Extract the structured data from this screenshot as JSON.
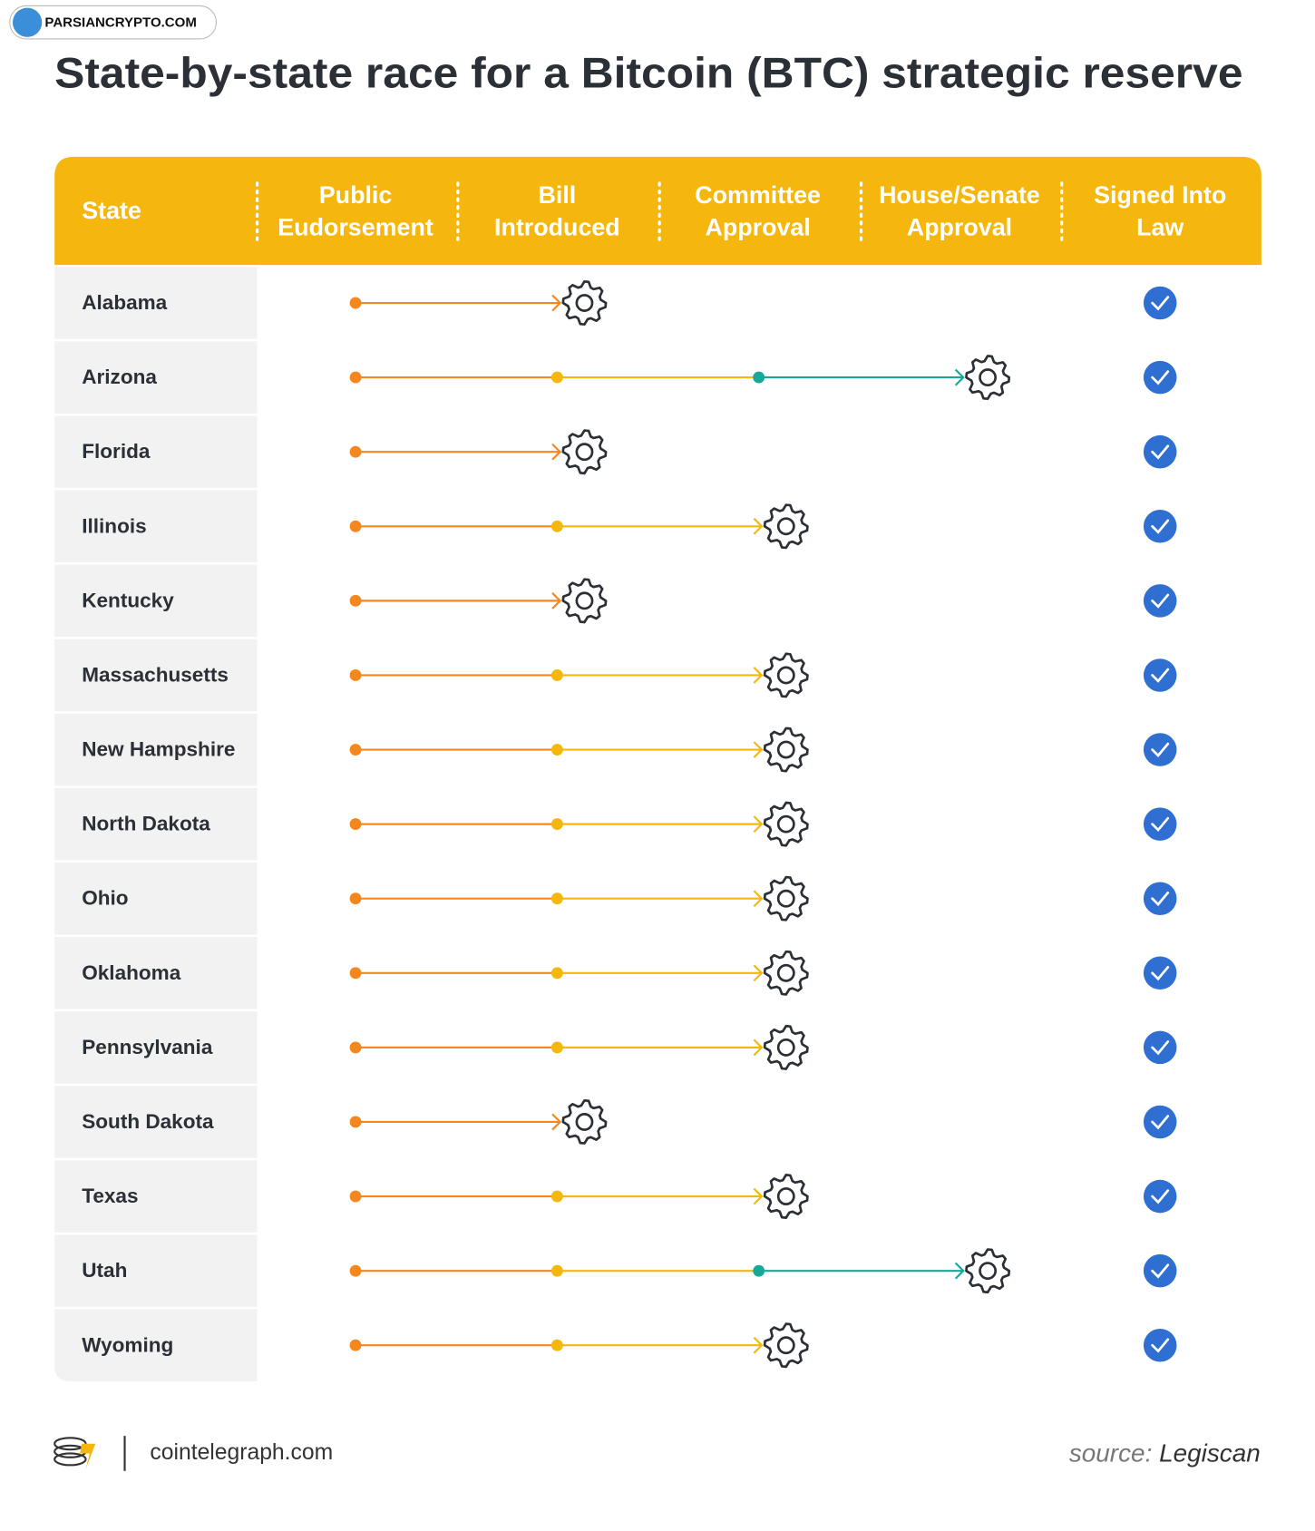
{
  "watermark": "PARSIANCRYPTO.COM",
  "title": "State-by-state race for a Bitcoin (BTC) strategic reserve",
  "header": {
    "state": "State",
    "stages": [
      [
        "Public",
        "Eudorsement"
      ],
      [
        "Bill",
        "Introduced"
      ],
      [
        "Committee",
        "Approval"
      ],
      [
        "House/Senate",
        "Approval"
      ],
      [
        "Signed Into",
        "Law"
      ]
    ]
  },
  "rows": [
    {
      "state": "Alabama",
      "stage": 1
    },
    {
      "state": "Arizona",
      "stage": 3
    },
    {
      "state": "Florida",
      "stage": 1
    },
    {
      "state": "Illinois",
      "stage": 2
    },
    {
      "state": "Kentucky",
      "stage": 1
    },
    {
      "state": "Massachusetts",
      "stage": 2
    },
    {
      "state": "New Hampshire",
      "stage": 2
    },
    {
      "state": "North Dakota",
      "stage": 2
    },
    {
      "state": "Ohio",
      "stage": 2
    },
    {
      "state": "Oklahoma",
      "stage": 2
    },
    {
      "state": "Pennsylvania",
      "stage": 2
    },
    {
      "state": "South Dakota",
      "stage": 1
    },
    {
      "state": "Texas",
      "stage": 2
    },
    {
      "state": "Utah",
      "stage": 3
    },
    {
      "state": "Wyoming",
      "stage": 2
    }
  ],
  "footer": {
    "site": "cointelegraph.com",
    "source_label": "source:",
    "source": "Legiscan"
  }
}
